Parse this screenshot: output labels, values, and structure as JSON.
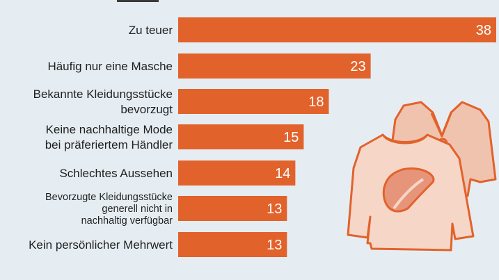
{
  "chart_data": {
    "type": "bar",
    "orientation": "horizontal",
    "categories": [
      "Zu teuer",
      "Häufig nur eine Masche",
      "Bekannte Kleidungsstücke bevorzugt",
      "Keine nachhaltige Mode bei präferiertem Händler",
      "Schlechtes Aussehen",
      "Bevorzugte Kleidungsstücke generell nicht in nachhaltig verfügbar",
      "Kein persönlicher Mehrwert"
    ],
    "category_lines": [
      [
        "Zu teuer"
      ],
      [
        "Häufig nur eine Masche"
      ],
      [
        "Bekannte Kleidungsstücke",
        "bevorzugt"
      ],
      [
        "Keine nachhaltige Mode",
        "bei präferiertem Händler"
      ],
      [
        "Schlechtes Aussehen"
      ],
      [
        "Bevorzugte Kleidungsstücke",
        "generell nicht in",
        "nachhaltig verfügbar"
      ],
      [
        "Kein persönlicher Mehrwert"
      ]
    ],
    "values": [
      38,
      23,
      18,
      15,
      14,
      13,
      13
    ],
    "value_labels": [
      "38",
      "23",
      "18",
      "15",
      "14",
      "13",
      "13"
    ],
    "xlim": [
      0,
      38
    ],
    "grid": false,
    "colors": {
      "bar": "#e2622b",
      "background": "#e6edf2",
      "illustration_light": "#f2c8b6",
      "illustration_mid": "#e9a88f"
    },
    "illustration": [
      "cardigan-icon",
      "sweater-icon",
      "leaf-icon"
    ]
  }
}
